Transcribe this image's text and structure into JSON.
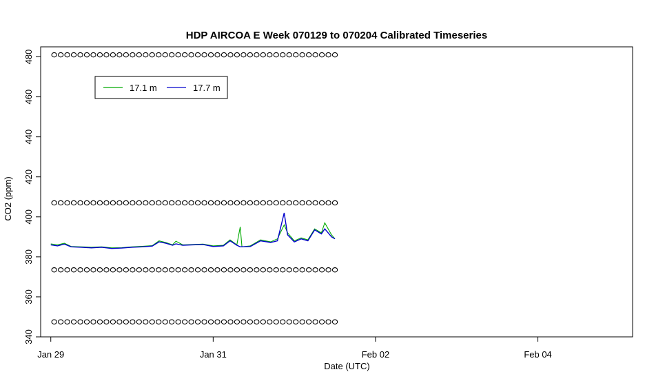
{
  "chart_data": {
    "type": "line",
    "title": "HDP AIRCOA E  Week 070129 to 070204  Calibrated Timeseries",
    "xlabel": "Date (UTC)",
    "ylabel": "CO2 (ppm)",
    "x_unit": "days",
    "xlim": [
      "2007-01-28 21:00",
      "2007-02-05 04:00"
    ],
    "ylim": [
      340,
      485
    ],
    "x_ticks": [
      {
        "x": "2007-01-29 00:00",
        "label": "Jan 29"
      },
      {
        "x": "2007-01-31 00:00",
        "label": "Jan 31"
      },
      {
        "x": "2007-02-02 00:00",
        "label": "Feb 02"
      },
      {
        "x": "2007-02-04 00:00",
        "label": "Feb 04"
      }
    ],
    "y_ticks": [
      340,
      360,
      380,
      400,
      420,
      440,
      460,
      480
    ],
    "grid": false,
    "legend": {
      "placement": "top-left",
      "entries": [
        {
          "name": "17.1 m",
          "color": "#00aa00"
        },
        {
          "name": "17.7 m",
          "color": "#0000cc"
        }
      ]
    },
    "series": [
      {
        "name": "17.1 m",
        "color": "#00aa00",
        "points": [
          [
            "2007-01-29 00:00",
            386.5
          ],
          [
            "2007-01-29 02:00",
            386.0
          ],
          [
            "2007-01-29 04:00",
            386.8
          ],
          [
            "2007-01-29 06:00",
            385.2
          ],
          [
            "2007-01-29 09:00",
            385.0
          ],
          [
            "2007-01-29 12:00",
            384.8
          ],
          [
            "2007-01-29 15:00",
            385.0
          ],
          [
            "2007-01-29 18:00",
            384.5
          ],
          [
            "2007-01-29 21:00",
            384.6
          ],
          [
            "2007-01-30 00:00",
            385.0
          ],
          [
            "2007-01-30 03:00",
            385.3
          ],
          [
            "2007-01-30 06:00",
            385.6
          ],
          [
            "2007-01-30 08:00",
            388.0
          ],
          [
            "2007-01-30 10:00",
            387.2
          ],
          [
            "2007-01-30 12:00",
            386.0
          ],
          [
            "2007-01-30 13:00",
            387.8
          ],
          [
            "2007-01-30 15:00",
            386.0
          ],
          [
            "2007-01-30 18:00",
            386.2
          ],
          [
            "2007-01-30 21:00",
            386.4
          ],
          [
            "2007-01-31 00:00",
            385.5
          ],
          [
            "2007-01-31 03:00",
            385.8
          ],
          [
            "2007-01-31 05:00",
            388.5
          ],
          [
            "2007-01-31 07:00",
            386.0
          ],
          [
            "2007-01-31 08:00",
            395.0
          ],
          [
            "2007-01-31 08:30",
            385.0
          ],
          [
            "2007-01-31 11:00",
            385.5
          ],
          [
            "2007-01-31 14:00",
            388.5
          ],
          [
            "2007-01-31 17:00",
            387.5
          ],
          [
            "2007-01-31 19:00",
            389.0
          ],
          [
            "2007-01-31 21:00",
            396.0
          ],
          [
            "2007-01-31 22:00",
            392.0
          ],
          [
            "2007-02-01 00:00",
            388.0
          ],
          [
            "2007-02-01 02:00",
            389.5
          ],
          [
            "2007-02-01 04:00",
            388.5
          ],
          [
            "2007-02-01 06:00",
            394.0
          ],
          [
            "2007-02-01 08:00",
            392.0
          ],
          [
            "2007-02-01 09:00",
            397.0
          ],
          [
            "2007-02-01 11:00",
            391.0
          ],
          [
            "2007-02-01 12:00",
            389.0
          ]
        ]
      },
      {
        "name": "17.7 m",
        "color": "#0000cc",
        "points": [
          [
            "2007-01-29 00:00",
            386.0
          ],
          [
            "2007-01-29 02:00",
            385.5
          ],
          [
            "2007-01-29 04:00",
            386.4
          ],
          [
            "2007-01-29 06:00",
            385.0
          ],
          [
            "2007-01-29 09:00",
            384.8
          ],
          [
            "2007-01-29 12:00",
            384.5
          ],
          [
            "2007-01-29 15:00",
            384.8
          ],
          [
            "2007-01-29 18:00",
            384.2
          ],
          [
            "2007-01-29 21:00",
            384.4
          ],
          [
            "2007-01-30 00:00",
            384.8
          ],
          [
            "2007-01-30 03:00",
            385.0
          ],
          [
            "2007-01-30 06:00",
            385.4
          ],
          [
            "2007-01-30 08:00",
            387.5
          ],
          [
            "2007-01-30 10:00",
            386.8
          ],
          [
            "2007-01-30 12:00",
            385.8
          ],
          [
            "2007-01-30 13:00",
            386.5
          ],
          [
            "2007-01-30 15:00",
            385.8
          ],
          [
            "2007-01-30 18:00",
            386.0
          ],
          [
            "2007-01-30 21:00",
            386.2
          ],
          [
            "2007-01-31 00:00",
            385.2
          ],
          [
            "2007-01-31 03:00",
            385.5
          ],
          [
            "2007-01-31 05:00",
            388.0
          ],
          [
            "2007-01-31 07:00",
            385.8
          ],
          [
            "2007-01-31 08:00",
            385.0
          ],
          [
            "2007-01-31 11:00",
            385.2
          ],
          [
            "2007-01-31 14:00",
            388.0
          ],
          [
            "2007-01-31 17:00",
            387.2
          ],
          [
            "2007-01-31 19:00",
            388.0
          ],
          [
            "2007-01-31 21:00",
            402.0
          ],
          [
            "2007-01-31 22:00",
            391.0
          ],
          [
            "2007-02-01 00:00",
            387.5
          ],
          [
            "2007-02-01 02:00",
            389.0
          ],
          [
            "2007-02-01 04:00",
            388.0
          ],
          [
            "2007-02-01 06:00",
            393.5
          ],
          [
            "2007-02-01 08:00",
            391.5
          ],
          [
            "2007-02-01 09:00",
            394.0
          ],
          [
            "2007-02-01 11:00",
            390.0
          ],
          [
            "2007-02-01 12:00",
            389.0
          ]
        ]
      },
      {
        "name": "",
        "marker": "circle",
        "color": "#000000",
        "rows": [
          481,
          407,
          373.5,
          347.5
        ],
        "x_start": "2007-01-29 01:00",
        "x_end": "2007-02-01 12:00",
        "count_per_row": 44
      }
    ]
  }
}
